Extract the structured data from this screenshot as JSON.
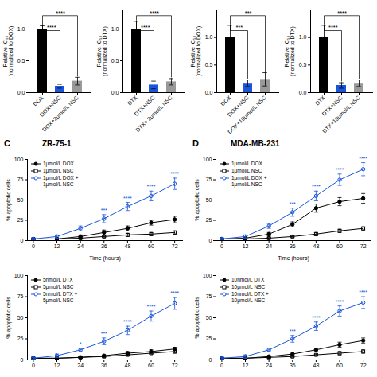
{
  "chart_data": [
    {
      "type": "bar",
      "ylabel": "Relative IC₅₀\n(normalized to DOX)",
      "categories": [
        "DOX",
        "DOX+NSC",
        "DOX+2μmol/L NSC"
      ],
      "values": [
        1.0,
        0.1,
        0.18
      ],
      "errors": [
        0.05,
        0.03,
        0.06
      ],
      "colors": [
        "#000000",
        "#1a56db",
        "#999999"
      ],
      "annotations": [
        {
          "between": [
            "DOX",
            "DOX+NSC"
          ],
          "text": "****"
        },
        {
          "between": [
            "DOX",
            "DOX+2μmol/L NSC"
          ],
          "text": "****"
        }
      ],
      "ylim": [
        0,
        1.3
      ],
      "yticks": [
        {
          "value": 0,
          "label": "0.0"
        },
        {
          "value": 0.5,
          "label": "0.5"
        },
        {
          "value": 1,
          "label": "1.0"
        }
      ]
    },
    {
      "type": "bar",
      "ylabel": "Relative IC₅₀\n(normalized to DTX)",
      "categories": [
        "DTX",
        "DTX+NSC",
        "DTX+ 2μmol/L NSC"
      ],
      "values": [
        1.0,
        0.12,
        0.17
      ],
      "errors": [
        0.12,
        0.06,
        0.05
      ],
      "colors": [
        "#000000",
        "#1a56db",
        "#999999"
      ],
      "annotations": [
        {
          "between": [
            "DTX",
            "DTX+NSC"
          ],
          "text": "****"
        },
        {
          "between": [
            "DTX",
            "DTX+ 2μmol/L NSC"
          ],
          "text": "****"
        }
      ],
      "ylim": [
        0,
        1.3
      ],
      "yticks": [
        {
          "value": 0,
          "label": "0.0"
        },
        {
          "value": 0.5,
          "label": "0.5"
        },
        {
          "value": 1,
          "label": "1.0"
        }
      ]
    },
    {
      "type": "bar",
      "ylabel": "Relative IC₅₀\n(normalized to DOX)",
      "categories": [
        "DOX",
        "DOX+NSC",
        "DOX+10μmol/L NSC"
      ],
      "values": [
        1.0,
        0.17,
        0.24
      ],
      "errors": [
        0.22,
        0.06,
        0.12
      ],
      "colors": [
        "#000000",
        "#1a56db",
        "#999999"
      ],
      "annotations": [
        {
          "between": [
            "DOX",
            "DOX+NSC"
          ],
          "text": "***"
        },
        {
          "between": [
            "DOX",
            "DOX+10μmol/L NSC"
          ],
          "text": "***"
        }
      ],
      "ylim": [
        0,
        1.5
      ],
      "yticks": [
        {
          "value": 0,
          "label": "0.0"
        },
        {
          "value": 0.5,
          "label": "0.5"
        },
        {
          "value": 1,
          "label": "1.0"
        }
      ]
    },
    {
      "type": "bar",
      "ylabel": "Relative IC₅₀\n(normalized to DTX)",
      "categories": [
        "DTX",
        "DTX+NSC",
        "DTX+10μmol/L NSC"
      ],
      "values": [
        1.0,
        0.13,
        0.17
      ],
      "errors": [
        0.22,
        0.05,
        0.06
      ],
      "colors": [
        "#000000",
        "#1a56db",
        "#999999"
      ],
      "annotations": [
        {
          "between": [
            "DTX",
            "DTX+NSC"
          ],
          "text": "****"
        },
        {
          "between": [
            "DTX",
            "DTX+10μmol/L NSC"
          ],
          "text": "****"
        }
      ],
      "ylim": [
        0,
        1.5
      ],
      "yticks": [
        {
          "value": 0,
          "label": "0.0"
        },
        {
          "value": 0.5,
          "label": "0.5"
        },
        {
          "value": 1,
          "label": "1.0"
        }
      ]
    },
    {
      "type": "line",
      "title": "ZR-75-1",
      "x": [
        0,
        12,
        24,
        36,
        48,
        60,
        72
      ],
      "xlim": [
        -3,
        76
      ],
      "xticks": [
        0,
        12,
        24,
        36,
        48,
        60,
        72
      ],
      "ylim": [
        0,
        100
      ],
      "yticks": [
        0,
        25,
        50,
        75,
        100
      ],
      "xlabel": "Time (hours)",
      "ylabel": "% apoptotic cells",
      "legend": "top-left",
      "series": [
        {
          "name": "1μmol/L DOX",
          "color": "#000000",
          "marker": "circle",
          "values": [
            2,
            2,
            5,
            10,
            15,
            22,
            26
          ],
          "errors": [
            1,
            1,
            2,
            3,
            3,
            3,
            4
          ]
        },
        {
          "name": "1μmol/L NSC",
          "color": "#000000",
          "marker": "square-open",
          "values": [
            2,
            2,
            3,
            5,
            7,
            8,
            10
          ],
          "errors": [
            1,
            1,
            1,
            1,
            2,
            2,
            2
          ]
        },
        {
          "name": "1μmol/L DOX +\n1μmol/L NSC",
          "color": "#1a56db",
          "marker": "circle-open",
          "values": [
            2,
            5,
            15,
            27,
            42,
            55,
            70
          ],
          "errors": [
            1,
            2,
            3,
            5,
            5,
            6,
            7
          ]
        }
      ],
      "annotations": [
        {
          "text": "C"
        },
        {
          "x": 36,
          "text": "***",
          "color": "#1a56db"
        },
        {
          "x": 48,
          "text": "****",
          "color": "#1a56db"
        },
        {
          "x": 60,
          "text": "****",
          "color": "#1a56db"
        },
        {
          "x": 72,
          "text": "****",
          "color": "#1a56db"
        }
      ]
    },
    {
      "type": "line",
      "title": "MDA-MB-231",
      "x": [
        0,
        12,
        24,
        36,
        48,
        60,
        72
      ],
      "xlim": [
        -3,
        76
      ],
      "xticks": [
        0,
        12,
        24,
        36,
        48,
        60,
        72
      ],
      "ylim": [
        0,
        100
      ],
      "yticks": [
        0,
        25,
        50,
        75,
        100
      ],
      "xlabel": "Time (hours)",
      "ylabel": "% apoptotic cells",
      "legend": "top-left",
      "series": [
        {
          "name": "1μmol/L DOX",
          "color": "#000000",
          "marker": "circle",
          "values": [
            2,
            3,
            8,
            20,
            40,
            48,
            52
          ],
          "errors": [
            1,
            1,
            2,
            3,
            5,
            5,
            6
          ]
        },
        {
          "name": "1μmol/L NSC",
          "color": "#000000",
          "marker": "square-open",
          "values": [
            2,
            2,
            3,
            5,
            8,
            12,
            15
          ],
          "errors": [
            1,
            1,
            1,
            1,
            2,
            2,
            2
          ]
        },
        {
          "name": "1μmol/L DOX +\n1μmol/L NSC",
          "color": "#1a56db",
          "marker": "circle-open",
          "values": [
            2,
            5,
            18,
            35,
            55,
            75,
            88
          ],
          "errors": [
            1,
            2,
            3,
            5,
            6,
            7,
            8
          ]
        }
      ],
      "annotations": [
        {
          "text": "D"
        },
        {
          "x": 36,
          "text": "***",
          "color": "#1a56db"
        },
        {
          "x": 48,
          "text": "****",
          "color": "#1a56db"
        },
        {
          "x": 60,
          "text": "****",
          "color": "#1a56db"
        },
        {
          "x": 72,
          "text": "****",
          "color": "#1a56db"
        }
      ]
    },
    {
      "type": "line",
      "x": [
        0,
        12,
        24,
        36,
        48,
        60,
        72
      ],
      "xlim": [
        -3,
        76
      ],
      "xticks": [
        0,
        12,
        24,
        36,
        48,
        60,
        72
      ],
      "ylim": [
        0,
        100
      ],
      "yticks": [
        0,
        25,
        50,
        75,
        100
      ],
      "ylabel": "% apoptotic cells",
      "legend": "top-left",
      "series": [
        {
          "name": "5nmol/L DTX",
          "color": "#000000",
          "marker": "circle",
          "values": [
            2,
            2,
            3,
            5,
            8,
            10,
            13
          ],
          "errors": [
            1,
            1,
            1,
            1,
            2,
            2,
            2
          ]
        },
        {
          "name": "5μmol/L NSC",
          "color": "#000000",
          "marker": "square-open",
          "values": [
            2,
            2,
            3,
            4,
            6,
            8,
            10
          ],
          "errors": [
            1,
            1,
            1,
            1,
            1,
            1,
            2
          ]
        },
        {
          "name": "5nmol/L DTX +\n5μmol/L NSC",
          "color": "#1a56db",
          "marker": "circle-open",
          "values": [
            2,
            5,
            12,
            22,
            35,
            52,
            67
          ],
          "errors": [
            1,
            2,
            2,
            4,
            5,
            6,
            7
          ]
        }
      ],
      "annotations": [
        {
          "x": 24,
          "text": "*",
          "color": "#1a56db"
        },
        {
          "x": 36,
          "text": "***",
          "color": "#1a56db"
        },
        {
          "x": 48,
          "text": "****",
          "color": "#1a56db"
        },
        {
          "x": 60,
          "text": "****",
          "color": "#1a56db"
        },
        {
          "x": 72,
          "text": "****",
          "color": "#1a56db"
        }
      ]
    },
    {
      "type": "line",
      "x": [
        0,
        12,
        24,
        36,
        48,
        60,
        72
      ],
      "xlim": [
        -3,
        76
      ],
      "xticks": [
        0,
        12,
        24,
        36,
        48,
        60,
        72
      ],
      "ylim": [
        0,
        100
      ],
      "yticks": [
        0,
        25,
        50,
        75,
        100
      ],
      "ylabel": "% apoptotic cells",
      "legend": "top-left",
      "series": [
        {
          "name": "10nmol/L DTX",
          "color": "#000000",
          "marker": "circle",
          "values": [
            2,
            2,
            4,
            7,
            12,
            18,
            23
          ],
          "errors": [
            1,
            1,
            1,
            2,
            2,
            3,
            3
          ]
        },
        {
          "name": "10μmol/L NSC",
          "color": "#000000",
          "marker": "square-open",
          "values": [
            2,
            2,
            3,
            4,
            6,
            8,
            10
          ],
          "errors": [
            1,
            1,
            1,
            1,
            1,
            2,
            2
          ]
        },
        {
          "name": "10nmol/L DTX +\n10μmol/L NSC",
          "color": "#1a56db",
          "marker": "circle-open",
          "values": [
            2,
            4,
            12,
            25,
            40,
            58,
            68
          ],
          "errors": [
            1,
            2,
            2,
            4,
            5,
            6,
            7
          ]
        }
      ],
      "annotations": [
        {
          "x": 36,
          "text": "***",
          "color": "#1a56db"
        },
        {
          "x": 48,
          "text": "****",
          "color": "#1a56db"
        },
        {
          "x": 60,
          "text": "****",
          "color": "#1a56db"
        },
        {
          "x": 72,
          "text": "****",
          "color": "#1a56db"
        }
      ]
    }
  ]
}
